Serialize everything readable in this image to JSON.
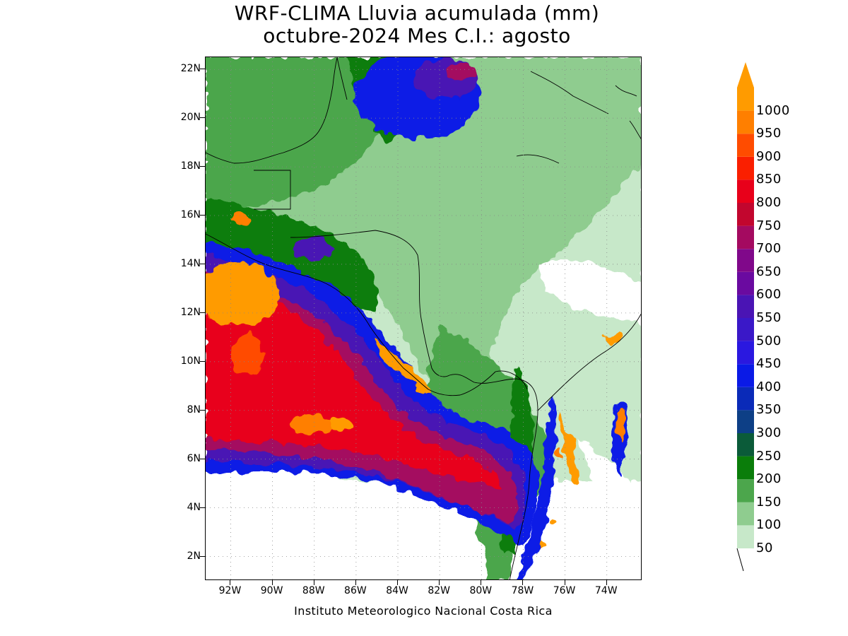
{
  "title": {
    "line1": "WRF-CLIMA Lluvia acumulada (mm)",
    "line2": "octubre-2024 Mes C.I.: agosto"
  },
  "credit": "Instituto Meteorologico Nacional Costa Rica",
  "map": {
    "lat_range": [
      1,
      22.5
    ],
    "lon_range": [
      -93.2,
      -72.3
    ],
    "lat_ticks": [
      {
        "value": 2,
        "label": "2N"
      },
      {
        "value": 4,
        "label": "4N"
      },
      {
        "value": 6,
        "label": "6N"
      },
      {
        "value": 8,
        "label": "8N"
      },
      {
        "value": 10,
        "label": "10N"
      },
      {
        "value": 12,
        "label": "12N"
      },
      {
        "value": 14,
        "label": "14N"
      },
      {
        "value": 16,
        "label": "16N"
      },
      {
        "value": 18,
        "label": "18N"
      },
      {
        "value": 20,
        "label": "20N"
      },
      {
        "value": 22,
        "label": "22N"
      }
    ],
    "lon_ticks": [
      {
        "value": -92,
        "label": "92W"
      },
      {
        "value": -90,
        "label": "90W"
      },
      {
        "value": -88,
        "label": "88W"
      },
      {
        "value": -86,
        "label": "86W"
      },
      {
        "value": -84,
        "label": "84W"
      },
      {
        "value": -82,
        "label": "82W"
      },
      {
        "value": -80,
        "label": "80W"
      },
      {
        "value": -78,
        "label": "78W"
      },
      {
        "value": -76,
        "label": "76W"
      },
      {
        "value": -74,
        "label": "74W"
      }
    ],
    "gridlines": "dotted"
  },
  "colorbar": {
    "levels": [
      "50",
      "100",
      "150",
      "200",
      "250",
      "300",
      "350",
      "400",
      "450",
      "500",
      "550",
      "600",
      "650",
      "700",
      "750",
      "800",
      "850",
      "900",
      "950",
      "1000"
    ],
    "colors": [
      "#c7e8c9",
      "#8fcc8f",
      "#4ca64c",
      "#0a7d0a",
      "#0b5b39",
      "#0d3f86",
      "#0a2ab8",
      "#0a1ae6",
      "#2a18e0",
      "#3a18c8",
      "#4a14b4",
      "#6a0aa0",
      "#80088a",
      "#a40a60",
      "#c2062e",
      "#e8001a",
      "#fa1f00",
      "#ff4c00",
      "#ff7f00",
      "#ff9b00"
    ],
    "extend": "max"
  }
}
